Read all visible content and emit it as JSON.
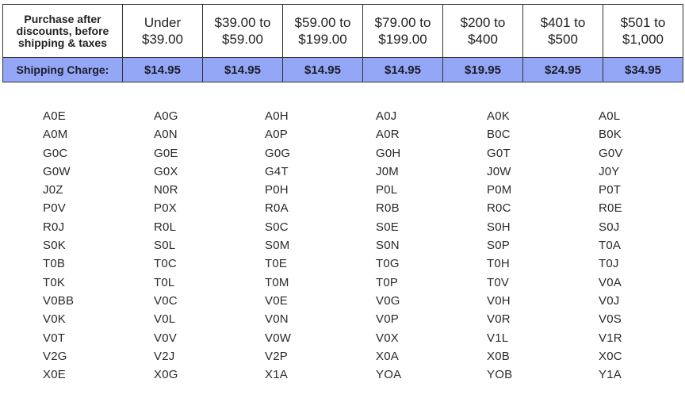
{
  "table": {
    "header": [
      "Purchase after\ndiscounts, before\nshipping & taxes",
      "Under\n$39.00",
      "$39.00 to\n$59.00",
      "$59.00 to\n$199.00",
      "$79.00 to\n$199.00",
      "$200 to\n$400",
      "$401 to\n$500",
      "$501 to\n$1,000"
    ],
    "shipping": [
      "Shipping Charge:",
      "$14.95",
      "$14.95",
      "$14.95",
      "$14.95",
      "$19.95",
      "$24.95",
      "$34.95"
    ],
    "colors": {
      "shipping_row_bg": "#94a6f6",
      "border": "#333333"
    }
  },
  "postal_codes": [
    [
      "A0E",
      "A0G",
      "A0H",
      "A0J",
      "A0K",
      "A0L"
    ],
    [
      "A0M",
      "A0N",
      "A0P",
      "A0R",
      "B0C",
      "B0K"
    ],
    [
      "G0C",
      "G0E",
      "G0G",
      "G0H",
      "G0T",
      "G0V"
    ],
    [
      "G0W",
      "G0X",
      "G4T",
      "J0M",
      "J0W",
      "J0Y"
    ],
    [
      "J0Z",
      "N0R",
      "P0H",
      "P0L",
      "P0M",
      "P0T"
    ],
    [
      "P0V",
      "P0X",
      "R0A",
      "R0B",
      "R0C",
      "R0E"
    ],
    [
      "R0J",
      "R0L",
      "S0C",
      "S0E",
      "S0H",
      "S0J"
    ],
    [
      "S0K",
      "S0L",
      "S0M",
      "S0N",
      "S0P",
      "T0A"
    ],
    [
      "T0B",
      "T0C",
      "T0E",
      "T0G",
      "T0H",
      "T0J"
    ],
    [
      "T0K",
      "T0L",
      "T0M",
      "T0P",
      "T0V",
      "V0A"
    ],
    [
      "V0BB",
      "V0C",
      "V0E",
      "V0G",
      "V0H",
      "V0J"
    ],
    [
      "V0K",
      "V0L",
      "V0N",
      "V0P",
      "V0R",
      "V0S"
    ],
    [
      "V0T",
      "V0V",
      "V0W",
      "V0X",
      "V1L",
      "V1R"
    ],
    [
      "V2G",
      "V2J",
      "V2P",
      "X0A",
      "X0B",
      "X0C"
    ],
    [
      "X0E",
      "X0G",
      "X1A",
      "YOA",
      "YOB",
      "Y1A"
    ]
  ]
}
